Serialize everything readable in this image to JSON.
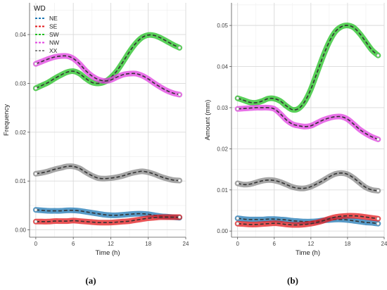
{
  "legend": {
    "title": "WD",
    "entries": [
      {
        "name": "NE",
        "color": "#1f78b4"
      },
      {
        "name": "SE",
        "color": "#e31a1c"
      },
      {
        "name": "SW",
        "color": "#22c022"
      },
      {
        "name": "NW",
        "color": "#e040e0"
      },
      {
        "name": "XX",
        "color": "#888888"
      }
    ]
  },
  "chart_data": [
    {
      "type": "line",
      "panel_label": "(a)",
      "xlabel": "Time (h)",
      "ylabel": "Frequency",
      "xlim": [
        -1,
        24
      ],
      "ylim": [
        -0.0015,
        0.0465
      ],
      "xticks": [
        0,
        6,
        12,
        18,
        24
      ],
      "yticks": [
        0.0,
        0.01,
        0.02,
        0.03,
        0.04
      ],
      "ytick_labels": [
        "0.00",
        "0.01",
        "0.02",
        "0.03",
        "0.04"
      ],
      "grid": true,
      "legend_position": "top-left",
      "x": [
        0,
        1,
        2,
        3,
        4,
        5,
        6,
        7,
        8,
        9,
        10,
        11,
        12,
        13,
        14,
        15,
        16,
        17,
        18,
        19,
        20,
        21,
        22,
        23
      ],
      "series": [
        {
          "name": "NE",
          "values": [
            0.0041,
            0.004,
            0.0039,
            0.0039,
            0.0039,
            0.004,
            0.004,
            0.0039,
            0.0037,
            0.0035,
            0.0033,
            0.0031,
            0.003,
            0.003,
            0.0031,
            0.0032,
            0.0033,
            0.0033,
            0.0032,
            0.003,
            0.0028,
            0.0027,
            0.0026,
            0.0025
          ]
        },
        {
          "name": "SE",
          "values": [
            0.0017,
            0.0017,
            0.0017,
            0.0018,
            0.0018,
            0.0018,
            0.0019,
            0.0018,
            0.0017,
            0.0016,
            0.0015,
            0.0015,
            0.0015,
            0.0016,
            0.0017,
            0.0018,
            0.002,
            0.0022,
            0.0024,
            0.0025,
            0.0026,
            0.0026,
            0.0026,
            0.0026
          ]
        },
        {
          "name": "SW",
          "values": [
            0.029,
            0.0296,
            0.0302,
            0.031,
            0.0317,
            0.0323,
            0.0325,
            0.032,
            0.031,
            0.0302,
            0.03,
            0.0303,
            0.0312,
            0.0326,
            0.0345,
            0.0365,
            0.0382,
            0.0394,
            0.0399,
            0.0398,
            0.0393,
            0.0386,
            0.0379,
            0.0373
          ]
        },
        {
          "name": "NW",
          "values": [
            0.034,
            0.0345,
            0.035,
            0.0354,
            0.0356,
            0.0356,
            0.0351,
            0.034,
            0.0326,
            0.0315,
            0.0308,
            0.0305,
            0.0307,
            0.0313,
            0.0318,
            0.032,
            0.032,
            0.0316,
            0.0309,
            0.03,
            0.0292,
            0.0285,
            0.028,
            0.0277
          ]
        },
        {
          "name": "XX",
          "values": [
            0.0115,
            0.0117,
            0.012,
            0.0124,
            0.0127,
            0.013,
            0.013,
            0.0126,
            0.0118,
            0.0111,
            0.0106,
            0.0105,
            0.0106,
            0.0108,
            0.0111,
            0.0115,
            0.0118,
            0.012,
            0.0118,
            0.0114,
            0.0109,
            0.0105,
            0.0102,
            0.0101
          ]
        }
      ]
    },
    {
      "type": "line",
      "panel_label": "(b)",
      "xlabel": "Time (h)",
      "ylabel": "Amount (mm)",
      "xlim": [
        -1,
        24
      ],
      "ylim": [
        -0.0015,
        0.0555
      ],
      "xticks": [
        0,
        6,
        12,
        18,
        24
      ],
      "yticks": [
        0.0,
        0.01,
        0.02,
        0.03,
        0.04,
        0.05
      ],
      "ytick_labels": [
        "0.00",
        "0.01",
        "0.02",
        "0.03",
        "0.04",
        "0.05"
      ],
      "grid": true,
      "legend_position": "none",
      "x": [
        0,
        1,
        2,
        3,
        4,
        5,
        6,
        7,
        8,
        9,
        10,
        11,
        12,
        13,
        14,
        15,
        16,
        17,
        18,
        19,
        20,
        21,
        22,
        23
      ],
      "series": [
        {
          "name": "NE",
          "values": [
            0.0031,
            0.0029,
            0.0028,
            0.0028,
            0.0028,
            0.0029,
            0.0029,
            0.0028,
            0.0027,
            0.0025,
            0.0024,
            0.0023,
            0.0023,
            0.0024,
            0.0026,
            0.0027,
            0.0028,
            0.0028,
            0.0027,
            0.0025,
            0.0023,
            0.0021,
            0.002,
            0.0018
          ]
        },
        {
          "name": "SE",
          "values": [
            0.0018,
            0.0017,
            0.0016,
            0.0016,
            0.0017,
            0.0018,
            0.0019,
            0.0018,
            0.0016,
            0.0015,
            0.0015,
            0.0016,
            0.0018,
            0.0021,
            0.0025,
            0.003,
            0.0034,
            0.0036,
            0.0037,
            0.0037,
            0.0036,
            0.0034,
            0.0032,
            0.003
          ]
        },
        {
          "name": "SW",
          "values": [
            0.0323,
            0.0318,
            0.0313,
            0.0312,
            0.0316,
            0.0322,
            0.0322,
            0.0316,
            0.0304,
            0.0295,
            0.0298,
            0.0315,
            0.0345,
            0.0385,
            0.0425,
            0.046,
            0.0485,
            0.0497,
            0.05,
            0.0495,
            0.048,
            0.046,
            0.044,
            0.0427
          ]
        },
        {
          "name": "NW",
          "values": [
            0.0297,
            0.0298,
            0.0299,
            0.03,
            0.03,
            0.03,
            0.0297,
            0.0285,
            0.027,
            0.026,
            0.0256,
            0.0254,
            0.0256,
            0.0263,
            0.027,
            0.0275,
            0.0278,
            0.0278,
            0.0272,
            0.026,
            0.0247,
            0.0237,
            0.0229,
            0.0223
          ]
        },
        {
          "name": "XX",
          "values": [
            0.0116,
            0.0113,
            0.0114,
            0.0118,
            0.0122,
            0.0124,
            0.0123,
            0.0119,
            0.0113,
            0.0107,
            0.0104,
            0.0104,
            0.0108,
            0.0115,
            0.0123,
            0.0132,
            0.0139,
            0.0141,
            0.0138,
            0.0129,
            0.0117,
            0.0106,
            0.01,
            0.0098
          ]
        }
      ]
    }
  ]
}
